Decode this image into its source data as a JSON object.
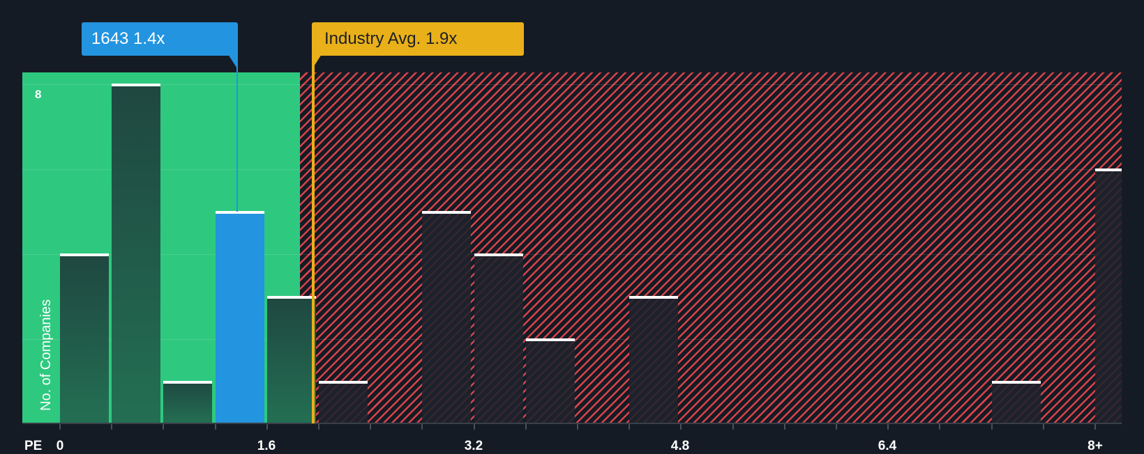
{
  "chart_data": {
    "type": "bar",
    "title": "",
    "xlabel": "PE",
    "ylabel": "No. of Companies",
    "ylim": [
      0,
      8
    ],
    "grid": true,
    "x_ticks": [
      "0",
      "1.6",
      "3.2",
      "4.8",
      "6.4",
      "8+"
    ],
    "y_ticks_labeled": [
      "8"
    ],
    "bin_width": 0.4,
    "categories": [
      "0-0.4",
      "0.4-0.8",
      "0.8-1.2",
      "1.2-1.6",
      "1.6-2.0",
      "2.0-2.4",
      "2.4-2.8",
      "2.8-3.2",
      "3.2-3.6",
      "3.6-4.0",
      "4.0-4.4",
      "4.4-4.8",
      "4.8-5.2",
      "5.2-5.6",
      "5.6-6.0",
      "6.0-6.4",
      "6.4-6.8",
      "6.8-7.2",
      "7.2-7.6",
      "7.6-8.0",
      "8+"
    ],
    "values": [
      4,
      8,
      1,
      5,
      3,
      1,
      0,
      5,
      4,
      2,
      0,
      3,
      0,
      0,
      0,
      0,
      0,
      0,
      1,
      0,
      6
    ],
    "highlight_bin": "1.2-1.6",
    "annotations": [
      {
        "label": "1643 1.4x",
        "x": 1.4,
        "color": "#2394e0"
      },
      {
        "label": "Industry Avg. 1.9x",
        "x": 1.9,
        "color": "#e9b01a"
      }
    ],
    "zones": [
      {
        "name": "below-industry",
        "from": 0,
        "to": 1.9,
        "color": "#2ec97f"
      },
      {
        "name": "above-industry",
        "from": 1.9,
        "to": "8+",
        "color": "#d9434a",
        "pattern": "diagonal-hatch"
      }
    ]
  },
  "labels": {
    "company": "1643 1.4x",
    "industry": "Industry Avg. 1.9x",
    "y_axis_title": "No. of Companies",
    "y_top_tick": "8",
    "x_axis_prefix": "PE",
    "x_ticks": [
      "0",
      "1.6",
      "3.2",
      "4.8",
      "6.4",
      "8+"
    ]
  },
  "colors": {
    "background": "#151b24",
    "green_zone": "#2ec97f",
    "red_hatch": "#d9434a",
    "company": "#2394e0",
    "industry": "#e9b01a"
  }
}
